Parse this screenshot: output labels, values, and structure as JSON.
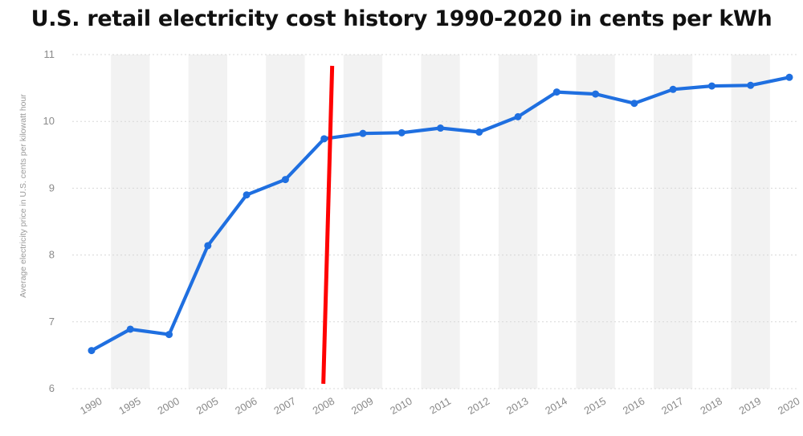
{
  "chart_data": {
    "type": "line",
    "title": "U.S. retail electricity cost history 1990-2020 in cents per kWh",
    "ylabel": "Average electricity price in U.S. cents per kilowatt hour",
    "xlabel": "",
    "ylim": [
      6,
      11
    ],
    "yticks": [
      "6",
      "7",
      "8",
      "9",
      "10",
      "11"
    ],
    "grid": true,
    "categories": [
      "1990",
      "1995",
      "2000",
      "2005",
      "2006",
      "2007",
      "2008",
      "2009",
      "2010",
      "2011",
      "2012",
      "2013",
      "2014",
      "2015",
      "2016",
      "2017",
      "2018",
      "2019",
      "2020"
    ],
    "series": [
      {
        "values": [
          6.57,
          6.89,
          6.81,
          8.14,
          8.9,
          9.13,
          9.74,
          9.82,
          9.83,
          9.9,
          9.84,
          10.07,
          10.44,
          10.41,
          10.27,
          10.48,
          10.53,
          10.54,
          10.66
        ]
      }
    ],
    "annotations": [
      {
        "type": "vertical-line",
        "at_category": "2008",
        "color": "#ff0000"
      }
    ],
    "colors": {
      "line": "#1f6fe0",
      "grid": "#d8d8d8",
      "band": "#f2f2f2",
      "marker_line": "#ff0000"
    }
  }
}
